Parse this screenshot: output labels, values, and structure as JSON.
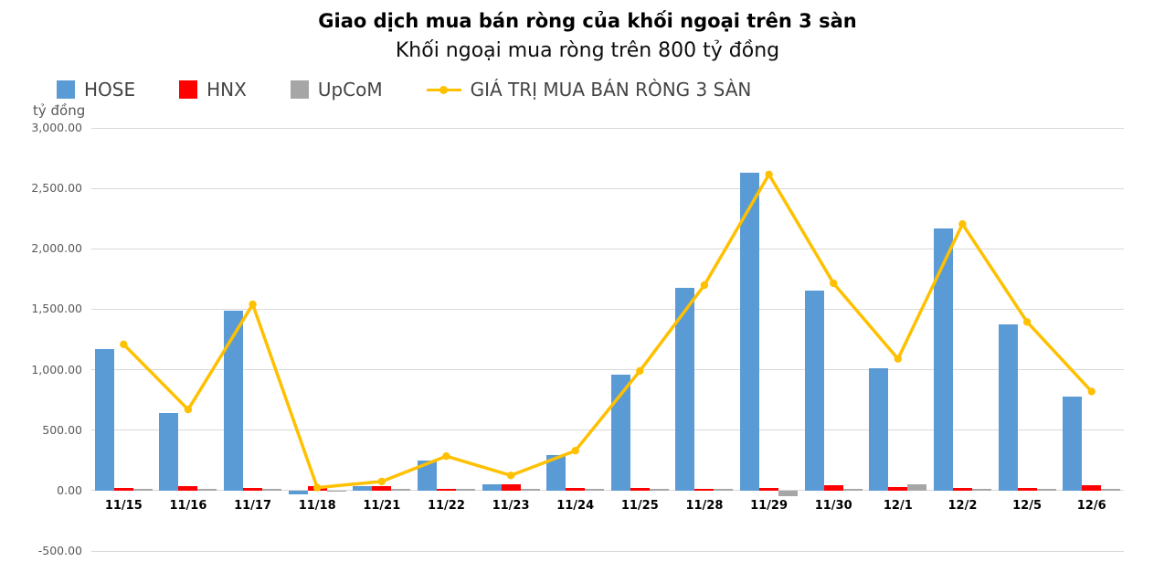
{
  "title": "Giao dịch mua bán ròng của khối ngoại trên 3 sàn",
  "subtitle": "Khối ngoại mua ròng trên 800 tỷ đồng",
  "axis_unit": "tỷ đồng",
  "colors": {
    "hose": "#5b9bd5",
    "hnx": "#ff0000",
    "upcom": "#a6a6a6",
    "net_line": "#ffc000",
    "gridline": "#d9d9d9",
    "axis_text": "#595959"
  },
  "legend": [
    {
      "label": "HOSE",
      "type": "square",
      "color": "#5b9bd5"
    },
    {
      "label": "HNX",
      "type": "square",
      "color": "#ff0000"
    },
    {
      "label": "UpCoM",
      "type": "square",
      "color": "#a6a6a6"
    },
    {
      "label": "GIÁ TRỊ MUA BÁN RÒNG 3 SÀN",
      "type": "line",
      "color": "#ffc000"
    }
  ],
  "chart_data": {
    "type": "bar",
    "title": "Giao dịch mua bán ròng của khối ngoại trên 3 sàn",
    "subtitle": "Khối ngoại mua ròng trên 800 tỷ đồng",
    "ylabel": "tỷ đồng",
    "xlabel": "",
    "ylim": [
      -500,
      3000
    ],
    "grid": true,
    "legend_position": "top-left",
    "ytick_values": [
      3000,
      2500,
      2000,
      1500,
      1000,
      500,
      0,
      -500
    ],
    "ytick_labels": [
      "3,000.00",
      "2,500.00",
      "2,000.00",
      "1,500.00",
      "1,000.00",
      "500.00",
      "0.00",
      "-500.00"
    ],
    "categories": [
      "11/15",
      "11/16",
      "11/17",
      "11/18",
      "11/21",
      "11/22",
      "11/23",
      "11/24",
      "11/25",
      "11/28",
      "11/29",
      "11/30",
      "12/1",
      "12/2",
      "12/5",
      "12/6"
    ],
    "series": [
      {
        "name": "HOSE",
        "render": "bar",
        "color": "#5b9bd5",
        "values": [
          1170,
          640,
          1490,
          -35,
          35,
          250,
          50,
          290,
          960,
          1675,
          2630,
          1655,
          1010,
          2170,
          1375,
          780
        ]
      },
      {
        "name": "HNX",
        "render": "bar",
        "color": "#ff0000",
        "values": [
          20,
          35,
          25,
          40,
          35,
          12,
          55,
          25,
          20,
          15,
          20,
          48,
          32,
          25,
          20,
          45
        ]
      },
      {
        "name": "UpCoM",
        "render": "bar",
        "color": "#a6a6a6",
        "values": [
          12,
          10,
          8,
          -6,
          6,
          6,
          5,
          5,
          5,
          5,
          -45,
          12,
          50,
          8,
          5,
          5
        ]
      },
      {
        "name": "GIÁ TRỊ MUA BÁN RÒNG 3 SÀN",
        "render": "line",
        "color": "#ffc000",
        "values": [
          1210,
          670,
          1540,
          25,
          75,
          285,
          125,
          330,
          990,
          1700,
          2615,
          1715,
          1090,
          2205,
          1395,
          820
        ]
      }
    ]
  }
}
